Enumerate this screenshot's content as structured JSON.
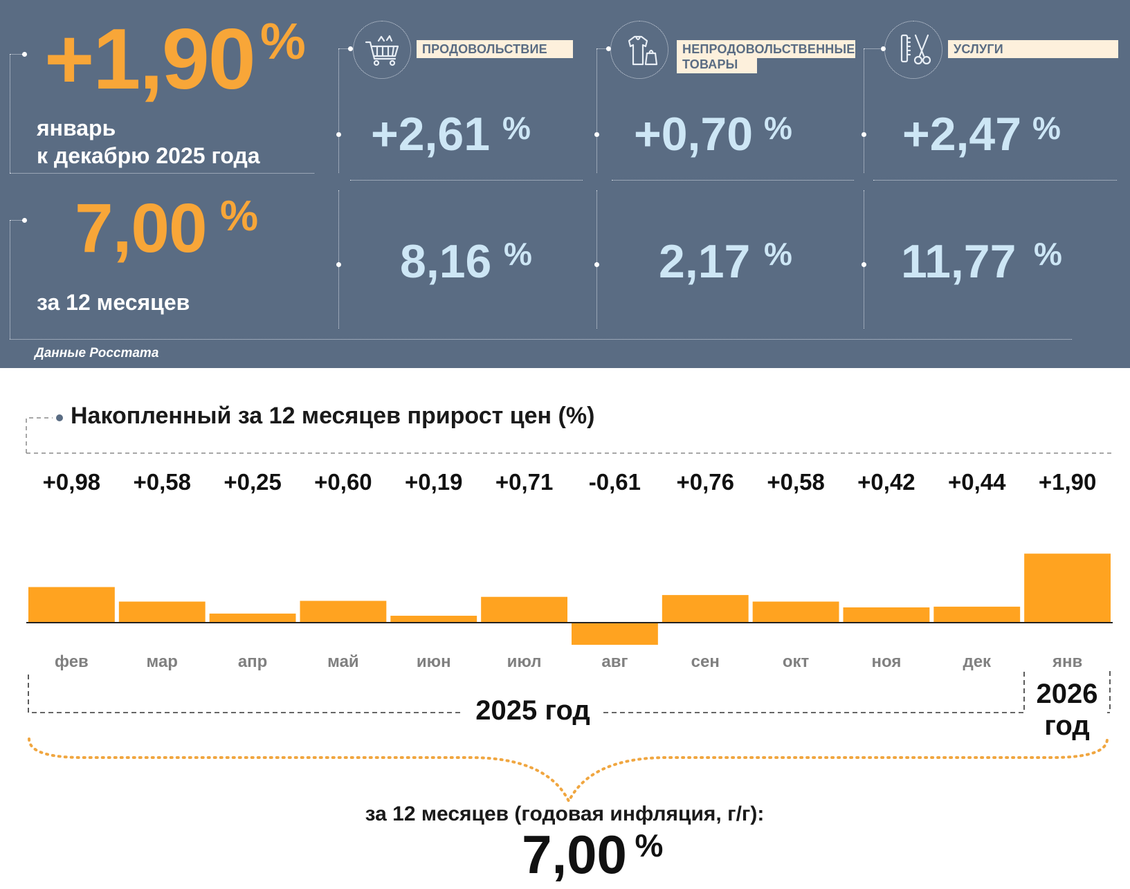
{
  "summary": {
    "monthly": {
      "value": "+1,90",
      "unit": "%",
      "caption_line1": "январь",
      "caption_line2": "к декабрю 2025 года"
    },
    "annual": {
      "value": "7,00",
      "unit": "%",
      "caption": "за 12 месяцев"
    },
    "source": "Данные Росстата"
  },
  "categories": [
    {
      "label": "ПРОДОВОЛЬСТВИЕ",
      "label_line2": "",
      "monthly": "+2,61",
      "annual": "8,16",
      "unit": "%",
      "icon": "shopping-cart-icon"
    },
    {
      "label": "НЕПРОДОВОЛЬСТВЕННЫЕ",
      "label_line2": "ТОВАРЫ",
      "monthly": "+0,70",
      "annual": "2,17",
      "unit": "%",
      "icon": "clothing-bag-icon"
    },
    {
      "label": "УСЛУГИ",
      "label_line2": "",
      "monthly": "+2,47",
      "annual": "11,77",
      "unit": "%",
      "icon": "comb-scissors-icon"
    }
  ],
  "chart_title": "Накопленный за 12 месяцев прирост цен (%)",
  "year_labels": {
    "y2025": "2025 год",
    "y2026_line1": "2026",
    "y2026_line2": "год"
  },
  "bottom": {
    "caption": "за 12 месяцев (годовая инфляция, г/г):",
    "value": "7,00",
    "unit": "%"
  },
  "colors": {
    "panel_bg": "#5a6c83",
    "orange": "#f8a638",
    "light_blue": "#cde6f5",
    "bar": "#ffa320"
  },
  "chart_data": {
    "type": "bar",
    "categories": [
      "фев",
      "мар",
      "апр",
      "май",
      "июн",
      "июл",
      "авг",
      "сен",
      "окт",
      "ноя",
      "дек",
      "янв"
    ],
    "values": [
      0.98,
      0.58,
      0.25,
      0.6,
      0.19,
      0.71,
      -0.61,
      0.76,
      0.58,
      0.42,
      0.44,
      1.9
    ],
    "value_labels": [
      "+0,98",
      "+0,58",
      "+0,25",
      "+0,60",
      "+0,19",
      "+0,71",
      "-0,61",
      "+0,76",
      "+0,58",
      "+0,42",
      "+0,44",
      "+1,90"
    ],
    "title": "Накопленный за 12 месяцев прирост цен (%)",
    "xlabel": "",
    "ylabel": "",
    "grid": false,
    "legend": "none"
  }
}
